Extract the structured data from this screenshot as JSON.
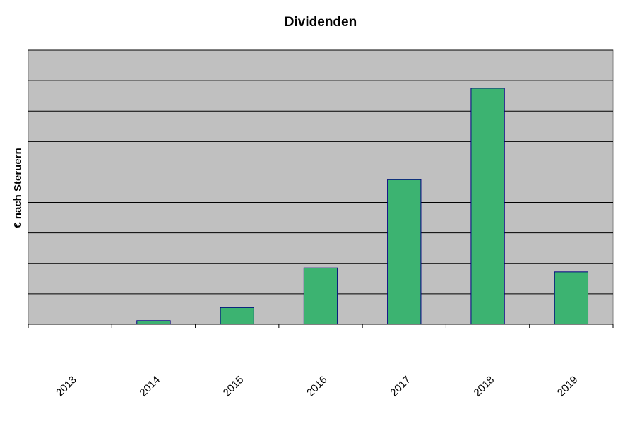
{
  "chart_data": {
    "type": "bar",
    "title": "Dividenden",
    "xlabel": "",
    "ylabel": "€ nach Steruern",
    "categories": [
      "2013",
      "2014",
      "2015",
      "2016",
      "2017",
      "2018",
      "2019"
    ],
    "series": [
      {
        "values": [
          0,
          0.12,
          0.55,
          1.85,
          4.75,
          7.75,
          1.72
        ]
      }
    ],
    "ylim": [
      0,
      9
    ],
    "y_tick_labels_shown": false,
    "grid": true,
    "colors": {
      "plot_background": "#c0c0c0",
      "bar_fill": "#3cb371",
      "bar_stroke": "#000080",
      "gridline": "#000000"
    }
  }
}
